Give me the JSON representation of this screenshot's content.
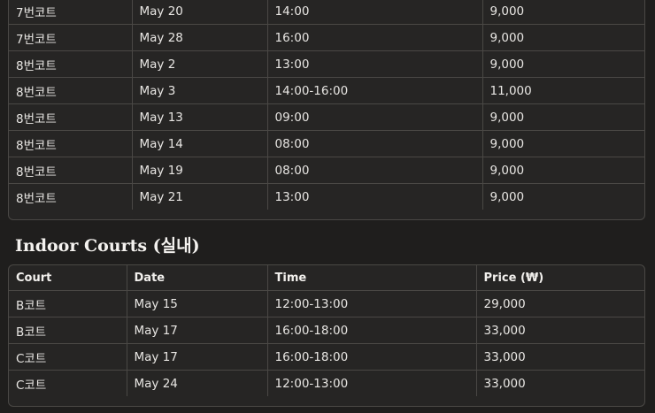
{
  "outdoor_rows": [
    [
      "7번코트",
      "May 20",
      "14:00",
      "9,000"
    ],
    [
      "7번코트",
      "May 28",
      "16:00",
      "9,000"
    ],
    [
      "8번코트",
      "May 2",
      "13:00",
      "9,000"
    ],
    [
      "8번코트",
      "May 3",
      "14:00-16:00",
      "11,000"
    ],
    [
      "8번코트",
      "May 13",
      "09:00",
      "9,000"
    ],
    [
      "8번코트",
      "May 14",
      "08:00",
      "9,000"
    ],
    [
      "8번코트",
      "May 19",
      "08:00",
      "9,000"
    ],
    [
      "8번코트",
      "May 21",
      "13:00",
      "9,000"
    ]
  ],
  "indoor": {
    "title": "Indoor Courts (실내)",
    "headers": [
      "Court",
      "Date",
      "Time",
      "Price (₩)"
    ],
    "rows": [
      [
        "B코트",
        "May 15",
        "12:00-13:00",
        "29,000"
      ],
      [
        "B코트",
        "May 17",
        "16:00-18:00",
        "33,000"
      ],
      [
        "C코트",
        "May 17",
        "16:00-18:00",
        "33,000"
      ],
      [
        "C코트",
        "May 24",
        "12:00-13:00",
        "33,000"
      ]
    ]
  }
}
